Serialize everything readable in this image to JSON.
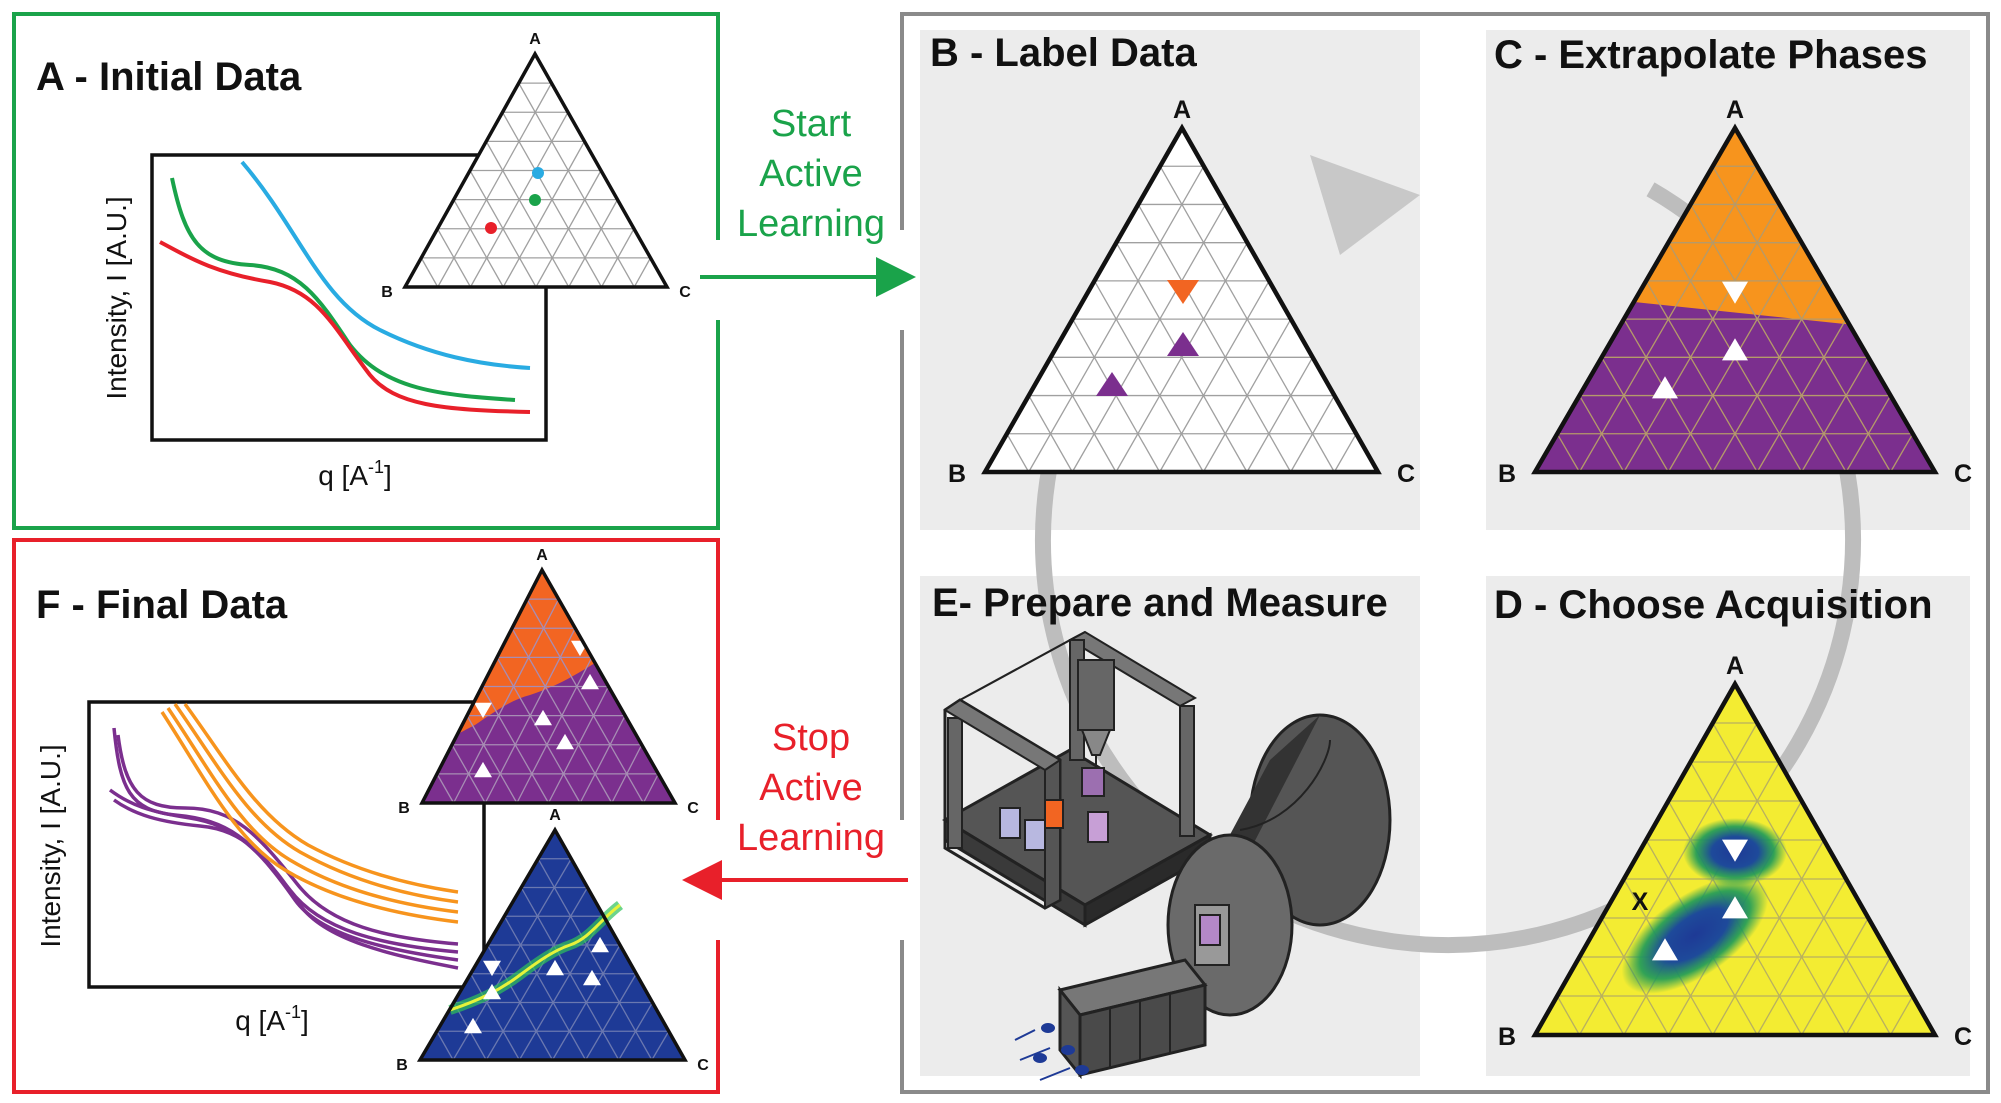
{
  "panels": {
    "a": {
      "title": "A - Initial Data",
      "y_axis": "Intensity, I [A.U.]",
      "x_axis": "q [A",
      "x_axis_sup": "-1",
      "x_axis_end": "]"
    },
    "b": {
      "title": "B - Label Data"
    },
    "c": {
      "title": "C - Extrapolate Phases"
    },
    "d": {
      "title": "D - Choose Acquisition",
      "marker": "X"
    },
    "e": {
      "title": "E- Prepare and Measure"
    },
    "f": {
      "title": "F - Final Data",
      "y_axis": "Intensity, I [A.U.]",
      "x_axis": "q [A",
      "x_axis_sup": "-1",
      "x_axis_end": "]"
    }
  },
  "vertices": {
    "a": "A",
    "b": "B",
    "c": "C"
  },
  "flow": {
    "start": [
      "Start",
      "Active",
      "Learning"
    ],
    "stop": [
      "Stop",
      "Active",
      "Learning"
    ]
  },
  "colors": {
    "start_green": "#1aa34a",
    "stop_red": "#e8202a",
    "loop_gray": "#8a8a8a",
    "panel_bg": "#ececec",
    "phase_orange": "#f7941d",
    "phase_orange_red": "#f26522",
    "phase_purple": "#7b2f8e",
    "acquisition_yellow": "#f3ec32",
    "uncertainty_blue": "#1e3a96",
    "curve_red": "#e8202a",
    "curve_green": "#1aa34a",
    "curve_blue": "#29abe2"
  },
  "icons": [
    "triangle-up-marker",
    "triangle-down-marker",
    "circle-marker",
    "robot-gantry-icon",
    "x-ray-beamline-icon"
  ]
}
